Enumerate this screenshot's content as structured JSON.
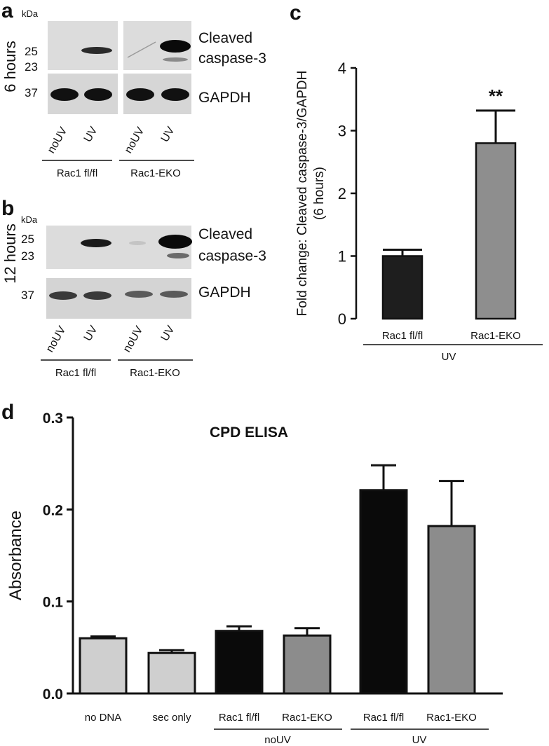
{
  "panels": {
    "a": {
      "letter": "a",
      "time_label": "6 hours",
      "kda_label": "kDa",
      "mw_markers": [
        "25",
        "23",
        "37"
      ],
      "blot_labels": [
        "Cleaved caspase-3",
        "GAPDH"
      ],
      "blot_label_lines": [
        "Cleaved",
        "caspase-3"
      ],
      "lane_labels": [
        "noUV",
        "UV",
        "noUV",
        "UV"
      ],
      "groups": [
        "Rac1 fl/fl",
        "Rac1-EKO"
      ]
    },
    "b": {
      "letter": "b",
      "time_label": "12 hours",
      "kda_label": "kDa",
      "mw_markers": [
        "25",
        "23",
        "37"
      ],
      "blot_label_lines": [
        "Cleaved",
        "caspase-3"
      ],
      "gapdh_label": "GAPDH",
      "lane_labels": [
        "noUV",
        "UV",
        "noUV",
        "UV"
      ],
      "groups": [
        "Rac1 fl/fl",
        "Rac1-EKO"
      ]
    },
    "c": {
      "letter": "c"
    },
    "d": {
      "letter": "d"
    }
  },
  "chart_data": [
    {
      "id": "c",
      "type": "bar",
      "categories": [
        "Rac1 fl/fl",
        "Rac1-EKO"
      ],
      "values": [
        1.0,
        2.8
      ],
      "errors": [
        0.1,
        0.52
      ],
      "colors": [
        "#1e1e1e",
        "#8e8e8e"
      ],
      "significance": [
        "",
        "**"
      ],
      "group_label": "UV",
      "ylabel": "Fold change: Cleaved caspase-3/GAPDH (6 hours)",
      "ylabel_lines": [
        "Fold change: Cleaved caspase-3/GAPDH",
        "(6 hours)"
      ],
      "ylim": [
        0,
        4
      ],
      "yticks": [
        "0",
        "1",
        "2",
        "3",
        "4"
      ]
    },
    {
      "id": "d",
      "type": "bar",
      "title": "CPD ELISA",
      "categories": [
        "no DNA",
        "sec only",
        "Rac1 fl/fl",
        "Rac1-EKO",
        "Rac1 fl/fl",
        "Rac1-EKO"
      ],
      "values": [
        0.06,
        0.044,
        0.068,
        0.063,
        0.221,
        0.182
      ],
      "errors": [
        0.002,
        0.003,
        0.005,
        0.008,
        0.027,
        0.049
      ],
      "colors": [
        "#cfcfcf",
        "#cfcfcf",
        "#0a0a0a",
        "#8c8c8c",
        "#0a0a0a",
        "#8c8c8c"
      ],
      "group_labels": [
        "noUV",
        "UV"
      ],
      "ylabel": "Absorbance",
      "ylim": [
        0,
        0.3
      ],
      "yticks": [
        "0.0",
        "0.1",
        "0.2",
        "0.3"
      ]
    }
  ]
}
